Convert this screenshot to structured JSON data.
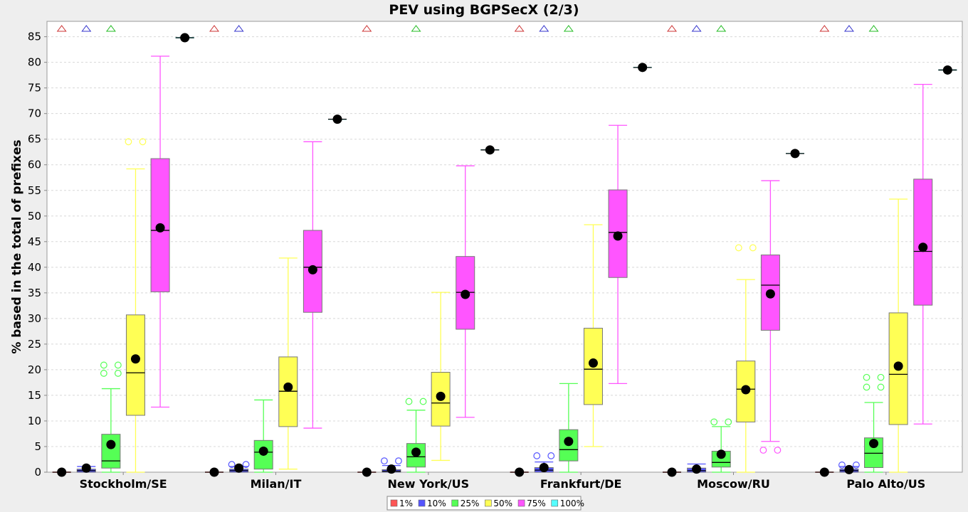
{
  "chart_data": {
    "type": "box",
    "title": "PEV using BGPSecX  (2/3)",
    "xlabel": "",
    "ylabel": "% based in the total of prefixes",
    "ylim": [
      0,
      88
    ],
    "yticks": [
      0,
      5,
      10,
      15,
      20,
      25,
      30,
      35,
      40,
      45,
      50,
      55,
      60,
      65,
      70,
      75,
      80,
      85
    ],
    "grid": true,
    "legend_position": "bottom",
    "categories": [
      "Stockholm/SE",
      "Milan/IT",
      "New York/US",
      "Frankfurt/DE",
      "Moscow/RU",
      "Palo Alto/US"
    ],
    "series": [
      {
        "name": "1%",
        "color": "#ff5555",
        "boxes": [
          {
            "min": 0,
            "q1": 0,
            "median": 0,
            "q3": 0,
            "max": 0,
            "mean": 0,
            "outliers": [],
            "offscale": true
          },
          {
            "min": 0,
            "q1": 0,
            "median": 0,
            "q3": 0,
            "max": 0,
            "mean": 0,
            "outliers": [],
            "offscale": true
          },
          {
            "min": 0,
            "q1": 0,
            "median": 0,
            "q3": 0,
            "max": 0,
            "mean": 0,
            "outliers": [],
            "offscale": true
          },
          {
            "min": 0,
            "q1": 0,
            "median": 0,
            "q3": 0,
            "max": 0,
            "mean": 0,
            "outliers": [],
            "offscale": true
          },
          {
            "min": 0,
            "q1": 0,
            "median": 0,
            "q3": 0,
            "max": 0,
            "mean": 0,
            "outliers": [],
            "offscale": true
          },
          {
            "min": 0,
            "q1": 0,
            "median": 0,
            "q3": 0,
            "max": 0,
            "mean": 0,
            "outliers": [],
            "offscale": true
          }
        ]
      },
      {
        "name": "10%",
        "color": "#5555ff",
        "boxes": [
          {
            "min": 0,
            "q1": 0,
            "median": 0.3,
            "q3": 0.6,
            "max": 1.1,
            "mean": 0.8,
            "outliers": [],
            "offscale": true
          },
          {
            "min": 0,
            "q1": 0,
            "median": 0.3,
            "q3": 0.6,
            "max": 1.1,
            "mean": 0.8,
            "outliers": [
              1.5
            ],
            "offscale": true
          },
          {
            "min": 0,
            "q1": 0,
            "median": 0.2,
            "q3": 0.5,
            "max": 1.3,
            "mean": 0.6,
            "outliers": [
              2.2
            ],
            "offscale": false
          },
          {
            "min": 0,
            "q1": 0,
            "median": 0.4,
            "q3": 0.9,
            "max": 2.0,
            "mean": 0.9,
            "outliers": [
              3.2
            ],
            "offscale": true
          },
          {
            "min": 0,
            "q1": 0,
            "median": 0.3,
            "q3": 0.8,
            "max": 1.6,
            "mean": 0.6,
            "outliers": [],
            "offscale": true
          },
          {
            "min": 0,
            "q1": 0,
            "median": 0.3,
            "q3": 0.6,
            "max": 1.1,
            "mean": 0.5,
            "outliers": [
              1.4
            ],
            "offscale": true
          }
        ]
      },
      {
        "name": "25%",
        "color": "#55ff55",
        "boxes": [
          {
            "min": 0,
            "q1": 0.8,
            "median": 2.2,
            "q3": 7.4,
            "max": 16.3,
            "mean": 5.4,
            "outliers": [
              19.3,
              20.9
            ],
            "offscale": true
          },
          {
            "min": 0,
            "q1": 0.6,
            "median": 3.9,
            "q3": 6.2,
            "max": 14.1,
            "mean": 4.1,
            "outliers": [],
            "offscale": false
          },
          {
            "min": 0,
            "q1": 1.0,
            "median": 3.0,
            "q3": 5.6,
            "max": 12.1,
            "mean": 3.9,
            "outliers": [
              13.8
            ],
            "offscale": true
          },
          {
            "min": 0,
            "q1": 2.2,
            "median": 4.4,
            "q3": 8.3,
            "max": 17.3,
            "mean": 6.0,
            "outliers": [],
            "offscale": true
          },
          {
            "min": 0,
            "q1": 1.0,
            "median": 1.9,
            "q3": 4.1,
            "max": 8.9,
            "mean": 3.5,
            "outliers": [
              9.8
            ],
            "offscale": true
          },
          {
            "min": 0,
            "q1": 0.9,
            "median": 3.7,
            "q3": 6.7,
            "max": 13.6,
            "mean": 5.6,
            "outliers": [
              16.6,
              18.5
            ],
            "offscale": true
          }
        ]
      },
      {
        "name": "50%",
        "color": "#ffff55",
        "boxes": [
          {
            "min": 0,
            "q1": 11.1,
            "median": 19.4,
            "q3": 30.7,
            "max": 59.2,
            "mean": 22.1,
            "outliers": [
              64.5
            ],
            "offscale": false
          },
          {
            "min": 0.6,
            "q1": 8.9,
            "median": 15.8,
            "q3": 22.5,
            "max": 41.8,
            "mean": 16.6,
            "outliers": [],
            "offscale": false
          },
          {
            "min": 2.3,
            "q1": 9.0,
            "median": 13.5,
            "q3": 19.5,
            "max": 35.1,
            "mean": 14.8,
            "outliers": [],
            "offscale": false
          },
          {
            "min": 5.0,
            "q1": 13.2,
            "median": 20.1,
            "q3": 28.1,
            "max": 48.3,
            "mean": 21.3,
            "outliers": [],
            "offscale": false
          },
          {
            "min": 0,
            "q1": 9.8,
            "median": 16.2,
            "q3": 21.7,
            "max": 37.6,
            "mean": 16.1,
            "outliers": [
              43.8
            ],
            "offscale": false
          },
          {
            "min": 0,
            "q1": 9.3,
            "median": 19.1,
            "q3": 31.1,
            "max": 53.3,
            "mean": 20.7,
            "outliers": [],
            "offscale": false
          }
        ]
      },
      {
        "name": "75%",
        "color": "#ff55ff",
        "boxes": [
          {
            "min": 12.7,
            "q1": 35.2,
            "median": 47.2,
            "q3": 61.2,
            "max": 81.2,
            "mean": 47.7,
            "outliers": [],
            "offscale": false
          },
          {
            "min": 8.6,
            "q1": 31.2,
            "median": 40.0,
            "q3": 47.2,
            "max": 64.5,
            "mean": 39.5,
            "outliers": [],
            "offscale": false
          },
          {
            "min": 10.7,
            "q1": 27.9,
            "median": 35.1,
            "q3": 42.1,
            "max": 59.8,
            "mean": 34.7,
            "outliers": [],
            "offscale": false
          },
          {
            "min": 17.3,
            "q1": 38.0,
            "median": 46.8,
            "q3": 55.1,
            "max": 67.7,
            "mean": 46.1,
            "outliers": [],
            "offscale": false
          },
          {
            "min": 6.0,
            "q1": 27.7,
            "median": 36.5,
            "q3": 42.4,
            "max": 56.9,
            "mean": 34.8,
            "outliers": [
              4.3
            ],
            "offscale": false
          },
          {
            "min": 9.4,
            "q1": 32.6,
            "median": 43.1,
            "q3": 57.2,
            "max": 75.7,
            "mean": 43.9,
            "outliers": [],
            "offscale": false
          }
        ]
      },
      {
        "name": "100%",
        "color": "#55ffff",
        "boxes": [
          {
            "min": 84.8,
            "q1": 84.8,
            "median": 84.8,
            "q3": 84.8,
            "max": 84.8,
            "mean": 84.8,
            "outliers": [],
            "offscale": false
          },
          {
            "min": 68.9,
            "q1": 68.9,
            "median": 68.9,
            "q3": 68.9,
            "max": 68.9,
            "mean": 68.9,
            "outliers": [],
            "offscale": false
          },
          {
            "min": 62.9,
            "q1": 62.9,
            "median": 62.9,
            "q3": 62.9,
            "max": 62.9,
            "mean": 62.9,
            "outliers": [],
            "offscale": false
          },
          {
            "min": 79.0,
            "q1": 79.0,
            "median": 79.0,
            "q3": 79.0,
            "max": 79.0,
            "mean": 79.0,
            "outliers": [],
            "offscale": false
          },
          {
            "min": 62.2,
            "q1": 62.2,
            "median": 62.2,
            "q3": 62.2,
            "max": 62.2,
            "mean": 62.2,
            "outliers": [],
            "offscale": false
          },
          {
            "min": 78.5,
            "q1": 78.5,
            "median": 78.5,
            "q3": 78.5,
            "max": 78.5,
            "mean": 78.5,
            "outliers": [],
            "offscale": false
          }
        ]
      }
    ]
  }
}
